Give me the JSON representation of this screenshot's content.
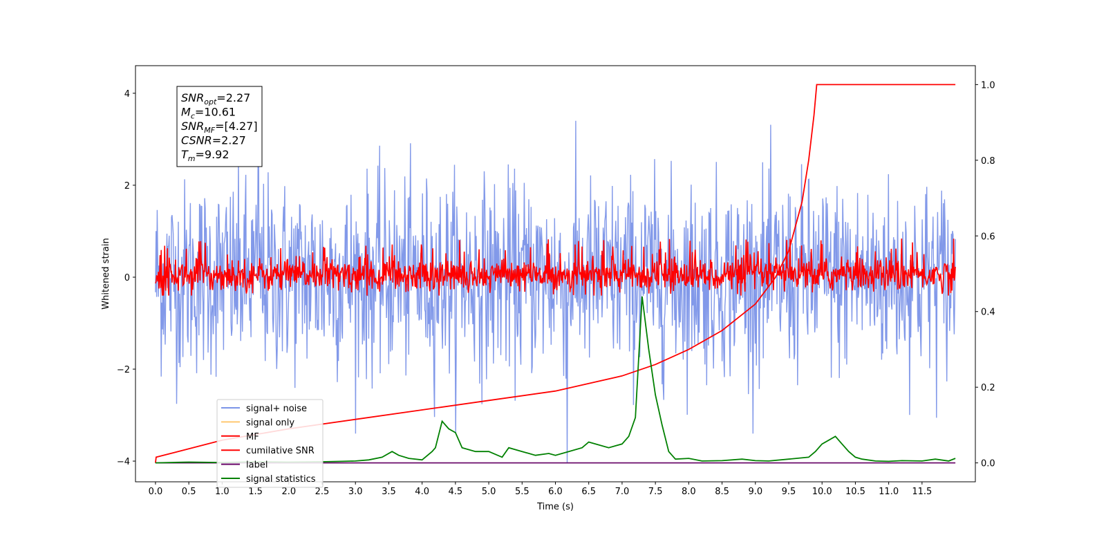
{
  "chart_data": {
    "type": "line",
    "xlabel": "Time (s)",
    "ylabel": "Whitened strain",
    "x_ticks": [
      "0.0",
      "0.5",
      "1.0",
      "1.5",
      "2.0",
      "2.5",
      "3.0",
      "3.5",
      "4.0",
      "4.5",
      "5.0",
      "5.5",
      "6.0",
      "6.5",
      "7.0",
      "7.5",
      "8.0",
      "8.5",
      "9.0",
      "9.5",
      "10.0",
      "10.5",
      "11.0",
      "11.5"
    ],
    "y_left_ticks": [
      "−4",
      "−2",
      "0",
      "2",
      "4"
    ],
    "y_right_ticks": [
      "0.0",
      "0.2",
      "0.4",
      "0.6",
      "0.8",
      "1.0"
    ],
    "xlim": [
      -0.3,
      12.3
    ],
    "ylim_left": [
      -4.45,
      4.6
    ],
    "ylim_right": [
      -0.05,
      1.05
    ],
    "annotation": [
      {
        "base": "SNR",
        "sub": "opt",
        "value": "=2.27"
      },
      {
        "base": "M",
        "sub": "c",
        "value": "=10.61"
      },
      {
        "base": "SNR",
        "sub": "MF",
        "value": "=[4.27]"
      },
      {
        "base": "CSNR",
        "sub": "",
        "value": "=2.27"
      },
      {
        "base": "T",
        "sub": "m",
        "value": "=9.92"
      }
    ],
    "legend": {
      "placement": "lower-left",
      "entries": [
        {
          "label": "signal+ noise",
          "color": "#7b94e8"
        },
        {
          "label": "signal only",
          "color": "#ffc870"
        },
        {
          "label": "MF",
          "color": "#ff0000"
        },
        {
          "label": "cumilative SNR",
          "color": "#ff0000"
        },
        {
          "label": "label",
          "color": "#6a0a6a"
        },
        {
          "label": "signal statistics",
          "color": "#008000"
        }
      ]
    },
    "series": [
      {
        "name": "signal+ noise",
        "axis": "left",
        "color": "#7b94e8",
        "x_range": [
          0.0,
          12.0
        ],
        "typical_band": [
          -2.5,
          2.5
        ],
        "extreme_peaks": [
          4.15,
          -4.05
        ]
      },
      {
        "name": "MF",
        "axis": "left",
        "color": "#ff0000",
        "x_range": [
          0.0,
          12.0
        ],
        "typical_band": [
          -0.4,
          0.9
        ]
      },
      {
        "name": "cumilative SNR",
        "axis": "right",
        "color": "#ff0000",
        "x": [
          0.0,
          0.01,
          1.0,
          2.0,
          3.0,
          4.0,
          5.0,
          6.0,
          7.0,
          7.5,
          8.0,
          8.5,
          9.0,
          9.3,
          9.5,
          9.7,
          9.8,
          9.88,
          9.92,
          12.0
        ],
        "y": [
          0.0,
          0.015,
          0.06,
          0.09,
          0.115,
          0.14,
          0.165,
          0.19,
          0.23,
          0.26,
          0.3,
          0.35,
          0.42,
          0.49,
          0.56,
          0.69,
          0.8,
          0.92,
          1.0,
          1.0
        ]
      },
      {
        "name": "label",
        "axis": "right",
        "color": "#6a0a6a",
        "x": [
          0.0,
          12.0
        ],
        "y": [
          0.0,
          0.0
        ]
      },
      {
        "name": "signal statistics",
        "axis": "right",
        "color": "#008000",
        "x": [
          0.0,
          0.5,
          1.0,
          1.5,
          2.0,
          2.5,
          2.8,
          3.0,
          3.2,
          3.4,
          3.55,
          3.65,
          3.8,
          4.0,
          4.15,
          4.2,
          4.3,
          4.4,
          4.5,
          4.6,
          4.8,
          5.0,
          5.2,
          5.3,
          5.5,
          5.7,
          5.9,
          6.0,
          6.2,
          6.4,
          6.5,
          6.6,
          6.8,
          7.0,
          7.1,
          7.2,
          7.3,
          7.4,
          7.5,
          7.6,
          7.7,
          7.8,
          8.0,
          8.2,
          8.5,
          8.8,
          9.0,
          9.2,
          9.5,
          9.8,
          9.9,
          10.0,
          10.1,
          10.2,
          10.3,
          10.4,
          10.5,
          10.6,
          10.8,
          11.0,
          11.2,
          11.5,
          11.7,
          11.9,
          12.0
        ],
        "y": [
          0.0,
          0.002,
          0.001,
          0.003,
          0.002,
          0.003,
          0.004,
          0.005,
          0.008,
          0.015,
          0.03,
          0.02,
          0.012,
          0.008,
          0.03,
          0.04,
          0.11,
          0.09,
          0.08,
          0.04,
          0.03,
          0.03,
          0.015,
          0.04,
          0.03,
          0.02,
          0.025,
          0.02,
          0.03,
          0.04,
          0.055,
          0.05,
          0.04,
          0.05,
          0.07,
          0.12,
          0.44,
          0.3,
          0.18,
          0.1,
          0.03,
          0.01,
          0.012,
          0.005,
          0.006,
          0.01,
          0.006,
          0.005,
          0.01,
          0.015,
          0.03,
          0.05,
          0.06,
          0.07,
          0.05,
          0.03,
          0.015,
          0.01,
          0.005,
          0.004,
          0.006,
          0.005,
          0.01,
          0.005,
          0.012
        ]
      },
      {
        "name": "signal only",
        "axis": "left",
        "color": "#ffc870",
        "x": [],
        "y": []
      }
    ]
  }
}
